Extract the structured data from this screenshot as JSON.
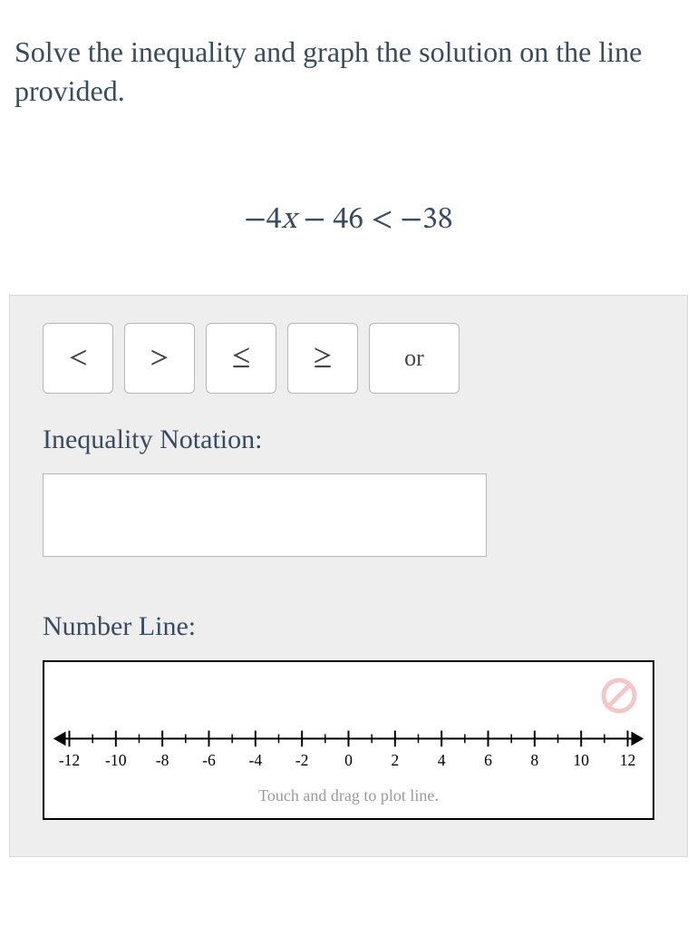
{
  "prompt": "Solve the inequality and graph the solution on the line provided.",
  "equation": {
    "lhs_pre": "−4",
    "lhs_var": "x",
    "lhs_post": " − 46",
    "op": " < ",
    "rhs": "−38"
  },
  "symbols": {
    "lt": "<",
    "gt": ">",
    "le": "≤",
    "ge": "≥",
    "or": "or"
  },
  "labels": {
    "inequality_notation": "Inequality Notation:",
    "number_line": "Number Line:",
    "hint": "Touch and drag to plot line."
  },
  "notation_value": "",
  "numberline": {
    "min": -12,
    "max": 12,
    "major_step": 2,
    "ticks": [
      -12,
      -10,
      -8,
      -6,
      -4,
      -2,
      0,
      2,
      4,
      6,
      8,
      10,
      12
    ],
    "tick_labels": [
      "-12",
      "-10",
      "-8",
      "-6",
      "-4",
      "-2",
      "0",
      "2",
      "4",
      "6",
      "8",
      "10",
      "12"
    ],
    "axis_color": "#000000",
    "label_color": "#000000",
    "label_fontsize": 18
  },
  "reset_icon_color": "#f4c7c7"
}
